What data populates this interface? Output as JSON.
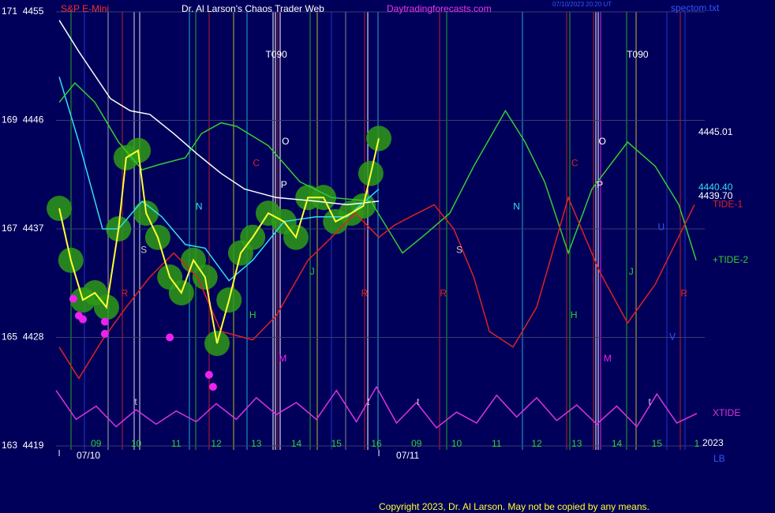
{
  "chart_data": {
    "type": "line",
    "title": "Dr. Al Larson's Chaos Trader Web",
    "symbol": "S&P E-Mini",
    "site": "Daytradingforecasts.com",
    "timestamp": "07/10/2023 20:20 UT",
    "file": "spectom.txt",
    "copyright": "Copyright 2023, Dr. Al Larson. May not be copied by any means.",
    "year": "2023",
    "corner_label": "LB",
    "ylim": [
      4419,
      4455
    ],
    "yticks": [
      {
        "value": 4455,
        "label": "171  4455"
      },
      {
        "value": 4446,
        "label": "169  4446"
      },
      {
        "value": 4437,
        "label": "167  4437"
      },
      {
        "value": 4428,
        "label": "165  4428"
      },
      {
        "value": 4419,
        "label": "163  4419"
      }
    ],
    "xlim": [
      0,
      16.2
    ],
    "xticks": [
      {
        "value": 1,
        "label": "09"
      },
      {
        "value": 2,
        "label": "10"
      },
      {
        "value": 3,
        "label": "11"
      },
      {
        "value": 4,
        "label": "12"
      },
      {
        "value": 5,
        "label": "13"
      },
      {
        "value": 6,
        "label": "14"
      },
      {
        "value": 7,
        "label": "15"
      },
      {
        "value": 8,
        "label": "16"
      },
      {
        "value": 9,
        "label": "09"
      },
      {
        "value": 10,
        "label": "10"
      },
      {
        "value": 11,
        "label": "11"
      },
      {
        "value": 12,
        "label": "12"
      },
      {
        "value": 13,
        "label": "13"
      },
      {
        "value": 14,
        "label": "14"
      },
      {
        "value": 15,
        "label": "15"
      },
      {
        "value": 16,
        "label": "1"
      }
    ],
    "date_labels": [
      {
        "value": 0.08,
        "label": "07/10"
      },
      {
        "value": 8.06,
        "label": "07/11"
      }
    ],
    "grid": true,
    "series": [
      {
        "color": "#ffffff",
        "x": [
          0.08,
          0.57,
          1.36,
          1.85,
          2.34,
          2.94,
          3.53,
          4.12,
          4.71,
          5.5,
          6.48,
          7.27,
          8.06
        ],
        "values": [
          4454.3,
          4451.7,
          4447.8,
          4446.8,
          4446.5,
          4444.9,
          4443.2,
          4441.6,
          4440.3,
          4439.6,
          4439.3,
          4439,
          4439.3
        ]
      },
      {
        "color": "#33ddee",
        "x": [
          0.08,
          0.57,
          1.16,
          1.56,
          2.15,
          2.64,
          3.23,
          3.72,
          4.32,
          4.91,
          5.69,
          6.48,
          7.27,
          8.06
        ],
        "values": [
          4449.6,
          4444.2,
          4437,
          4437,
          4439.3,
          4438,
          4435.7,
          4435.4,
          4432.7,
          4434.4,
          4437.6,
          4438,
          4438,
          4440.3
        ]
      },
      {
        "name": "+TIDE-2",
        "color": "#33cc33",
        "x": [
          0.08,
          0.47,
          0.97,
          1.56,
          2.15,
          2.54,
          3.23,
          3.63,
          4.12,
          4.51,
          5.3,
          6.09,
          6.88,
          7.86,
          8.65,
          9.24,
          9.83,
          10.43,
          11.22,
          11.71,
          12.2,
          12.79,
          13.38,
          14.27,
          14.96,
          15.55,
          15.98
        ],
        "values": [
          4447.5,
          4449.1,
          4447.5,
          4444.2,
          4441.9,
          4442.3,
          4442.9,
          4444.9,
          4445.8,
          4445.5,
          4443.9,
          4440.9,
          4439.6,
          4439.3,
          4435,
          4436.6,
          4438.3,
          4442.2,
          4446.8,
          4444.2,
          4440.9,
          4435,
          4440.3,
          4444.2,
          4442.2,
          4439,
          4434.4
        ]
      },
      {
        "name": "TIDE-1",
        "color": "#dd2222",
        "x": [
          0.08,
          0.57,
          1.16,
          1.75,
          2.34,
          2.94,
          3.53,
          4.12,
          4.91,
          5.5,
          6.29,
          6.88,
          7.47,
          8.06,
          8.45,
          8.85,
          9.44,
          9.93,
          10.43,
          10.82,
          11.41,
          12.0,
          12.79,
          13.58,
          14.27,
          14.96,
          15.94
        ],
        "values": [
          4427.2,
          4424.6,
          4427.8,
          4430.5,
          4433,
          4435,
          4433,
          4428.5,
          4427.8,
          4429.8,
          4434.4,
          4436.3,
          4438.3,
          4436.3,
          4437.3,
          4438,
          4439,
          4437,
          4433,
          4428.5,
          4427.2,
          4430.5,
          4439.6,
          4433.4,
          4429.2,
          4432.4,
          4439
        ]
      },
      {
        "name": "XTIDE",
        "color": "#dd33dd",
        "x": [
          0,
          0.5,
          1,
          1.5,
          2,
          2.5,
          3,
          3.5,
          4,
          4.5,
          5,
          5.5,
          6,
          6.5,
          7,
          7.5,
          8,
          8.5,
          9,
          9.5,
          10,
          10.5,
          11,
          11.5,
          12,
          12.5,
          13,
          13.5,
          14,
          14.5,
          15,
          15.5,
          16
        ],
        "values": [
          4423.6,
          4421.2,
          4422.3,
          4420.6,
          4422,
          4420.8,
          4421.9,
          4421,
          4422.5,
          4421.2,
          4423,
          4421.6,
          4422.6,
          4421.2,
          4423.6,
          4421,
          4423.9,
          4420.9,
          4422.6,
          4420.5,
          4421.8,
          4420.9,
          4423.2,
          4421.4,
          4423,
          4421.1,
          4422.4,
          4420.8,
          4422.3,
          4420.6,
          4423.3,
          4420.9,
          4421.7
        ]
      },
      {
        "color": "#ffff33",
        "x": [
          0.08,
          0.37,
          0.67,
          0.97,
          1.26,
          1.56,
          1.75,
          2.05,
          2.25,
          2.54,
          2.84,
          3.13,
          3.43,
          3.72,
          4.02,
          4.32,
          4.61,
          4.91,
          5.3,
          5.69,
          5.99,
          6.29,
          6.68,
          6.98,
          7.37,
          7.67,
          7.86,
          8.06
        ],
        "values": [
          4438.7,
          4434.4,
          4431.1,
          4431.7,
          4430.5,
          4437,
          4442.9,
          4443.5,
          4438.3,
          4436.3,
          4433,
          4431.7,
          4434.4,
          4433,
          4427.5,
          4431.1,
          4435,
          4436.3,
          4438.3,
          4437.6,
          4436.3,
          4439.6,
          4439.6,
          4437.6,
          4438.3,
          4438.9,
          4441.6,
          4444.5
        ]
      }
    ],
    "points": {
      "color": "#ee22ee",
      "x": [
        0.43,
        0.57,
        0.67,
        1.22,
        1.22,
        2.84,
        3.82,
        3.92
      ],
      "values": [
        4431.2,
        4429.8,
        4429.5,
        4429.3,
        4428.3,
        4428,
        4424.9,
        4423.9
      ]
    },
    "end_labels": [
      {
        "text": "4445.01",
        "color": "#ffffff",
        "y": 4445.01
      },
      {
        "text": "4440.40",
        "color": "#33ddee",
        "y": 4440.4
      },
      {
        "text": "4439.70",
        "color": "#ffffff",
        "y": 4439.7
      }
    ],
    "annotations": [
      {
        "text": "T090",
        "x": 5.5,
        "y": 4451.4,
        "color": "#ffffff"
      },
      {
        "text": "T090",
        "x": 14.52,
        "y": 4451.4,
        "color": "#ffffff"
      },
      {
        "text": "O",
        "x": 5.73,
        "y": 4444.2,
        "color": "#ffffff"
      },
      {
        "text": "O",
        "x": 13.64,
        "y": 4444.2,
        "color": "#ffffff"
      },
      {
        "text": "P",
        "x": 5.69,
        "y": 4440.6,
        "color": "#ffffff"
      },
      {
        "text": "P",
        "x": 13.58,
        "y": 4440.6,
        "color": "#ffffff"
      },
      {
        "text": "C",
        "x": 5.0,
        "y": 4442.4,
        "color": "#dd2222"
      },
      {
        "text": "C",
        "x": 12.95,
        "y": 4442.4,
        "color": "#dd2222"
      },
      {
        "text": "N",
        "x": 3.57,
        "y": 4438.8,
        "color": "#33ddee"
      },
      {
        "text": "N",
        "x": 11.5,
        "y": 4438.8,
        "color": "#33ddee"
      },
      {
        "text": "S",
        "x": 2.19,
        "y": 4435.2,
        "color": "#cccccc"
      },
      {
        "text": "S",
        "x": 10.07,
        "y": 4435.2,
        "color": "#cccccc"
      },
      {
        "text": "R",
        "x": 1.71,
        "y": 4431.6,
        "color": "#dd2222"
      },
      {
        "text": "R",
        "x": 7.7,
        "y": 4431.6,
        "color": "#dd2222"
      },
      {
        "text": "R",
        "x": 9.67,
        "y": 4431.6,
        "color": "#dd2222"
      },
      {
        "text": "R",
        "x": 15.68,
        "y": 4431.6,
        "color": "#dd2222"
      },
      {
        "text": "H",
        "x": 4.91,
        "y": 4429.8,
        "color": "#33cc33"
      },
      {
        "text": "H",
        "x": 12.93,
        "y": 4429.8,
        "color": "#33cc33"
      },
      {
        "text": "J",
        "x": 6.4,
        "y": 4433.4,
        "color": "#33cc33"
      },
      {
        "text": "J",
        "x": 14.36,
        "y": 4433.4,
        "color": "#33cc33"
      },
      {
        "text": "M",
        "x": 5.66,
        "y": 4426.2,
        "color": "#ee22ee"
      },
      {
        "text": "M",
        "x": 13.77,
        "y": 4426.2,
        "color": "#ee22ee"
      },
      {
        "text": "U",
        "x": 15.11,
        "y": 4437.1,
        "color": "#3355ff"
      },
      {
        "text": "V",
        "x": 15.39,
        "y": 4428,
        "color": "#3355ff"
      },
      {
        "text": "t",
        "x": 1.99,
        "y": 4422.6,
        "color": "#cccccc"
      },
      {
        "text": "t",
        "x": 7.8,
        "y": 4422.6,
        "color": "#cccccc"
      },
      {
        "text": "t",
        "x": 9.04,
        "y": 4422.6,
        "color": "#cccccc"
      },
      {
        "text": "t",
        "x": 14.82,
        "y": 4422.6,
        "color": "#cccccc"
      }
    ]
  }
}
